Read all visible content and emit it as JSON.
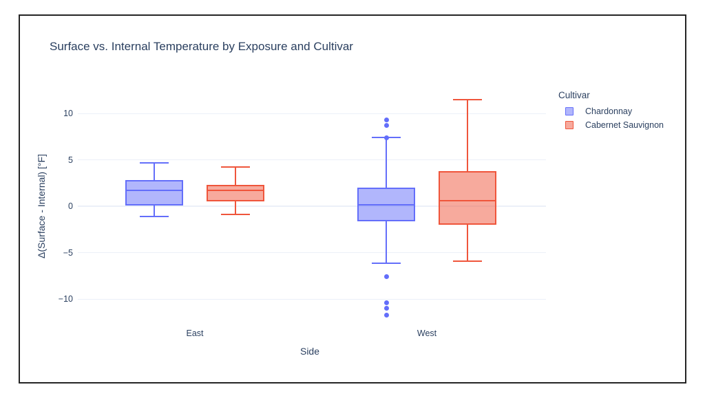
{
  "window": {
    "background": "#ffffff",
    "frame_border_color": "#242424"
  },
  "chart_data": {
    "type": "box",
    "title": "Surface vs. Internal Temperature by Exposure and Cultivar",
    "xlabel": "Side",
    "ylabel": "Δ(Surface - Internal) [°F]",
    "categories": [
      "East",
      "West"
    ],
    "y_ticks": [
      {
        "value": 10,
        "label": "10"
      },
      {
        "value": 5,
        "label": "5"
      },
      {
        "value": 0,
        "label": "0"
      },
      {
        "value": -5,
        "label": "−5"
      },
      {
        "value": -10,
        "label": "−10"
      }
    ],
    "ylim": [
      -13.1,
      12.9
    ],
    "grid": true,
    "legend": {
      "title": "Cultivar",
      "position": "right",
      "items": [
        {
          "label": "Chardonnay",
          "line_color": "#636EFA",
          "fill_color": "rgba(99,110,250,0.5)"
        },
        {
          "label": "Cabernet Sauvignon",
          "line_color": "#EF553B",
          "fill_color": "rgba(239,85,59,0.5)"
        }
      ]
    },
    "series": [
      {
        "name": "Chardonnay",
        "line_color": "#636EFA",
        "fill_color": "rgba(99,110,250,0.5)",
        "boxes": [
          {
            "category": "East",
            "lower_whisker": -1.1,
            "q1": 0.1,
            "median": 1.7,
            "q3": 2.8,
            "upper_whisker": 4.7,
            "outliers": []
          },
          {
            "category": "West",
            "lower_whisker": -6.1,
            "q1": -1.6,
            "median": 0.2,
            "q3": 2.0,
            "upper_whisker": 7.4,
            "outliers": [
              9.3,
              8.7,
              7.4,
              -7.6,
              -10.4,
              -11.0,
              -11.7
            ]
          }
        ]
      },
      {
        "name": "Cabernet Sauvignon",
        "line_color": "#EF553B",
        "fill_color": "rgba(239,85,59,0.5)",
        "boxes": [
          {
            "category": "East",
            "lower_whisker": -0.9,
            "q1": 0.5,
            "median": 1.7,
            "q3": 2.3,
            "upper_whisker": 4.2,
            "outliers": []
          },
          {
            "category": "West",
            "lower_whisker": -5.9,
            "q1": -2.0,
            "median": 0.6,
            "q3": 3.8,
            "upper_whisker": 11.5,
            "outliers": []
          }
        ]
      }
    ],
    "colors": {
      "text": "#2a3f5f",
      "grid": "#EBF0F8"
    }
  }
}
